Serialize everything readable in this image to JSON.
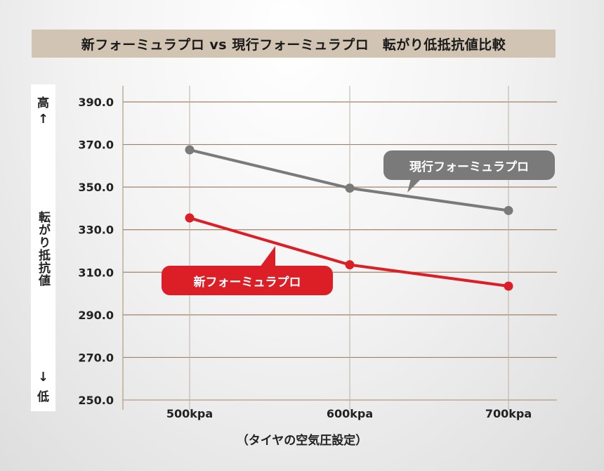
{
  "title": "新フォーミュラプロ vs 現行フォーミュラプロ　転がり低抵抗値比較",
  "ylabel": {
    "top_char": "高",
    "top_arrow": "↑",
    "middle": "転がり抵抗値",
    "bottom_arrow": "↓",
    "bottom_char": "低"
  },
  "xlabel": "（タイヤの空気圧設定）",
  "colors": {
    "current": "#7a7a7a",
    "new": "#dc1e26",
    "grid": "#a08266",
    "axis": "#b49a80"
  },
  "chart_data": {
    "type": "line",
    "categories": [
      "500kpa",
      "600kpa",
      "700kpa"
    ],
    "ylim": [
      250,
      390
    ],
    "yticks": [
      "390.0",
      "370.0",
      "350.0",
      "330.0",
      "310.0",
      "290.0",
      "270.0",
      "250.0"
    ],
    "series": [
      {
        "name": "現行フォーミュラプロ",
        "values": [
          367.5,
          349.5,
          339.0
        ]
      },
      {
        "name": "新フォーミュラプロ",
        "values": [
          335.5,
          313.5,
          303.5
        ]
      }
    ],
    "grid": true
  }
}
